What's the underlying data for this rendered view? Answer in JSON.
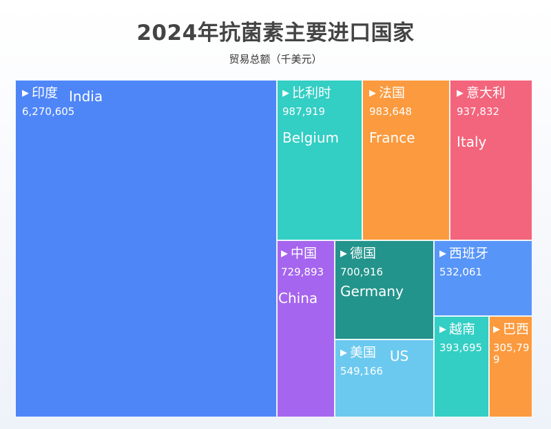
{
  "title": "2024年抗菌素主要进口国家",
  "subtitle": "贸易总额（千美元）",
  "chart_data": {
    "type": "treemap",
    "title": "2024年抗菌素主要进口国家",
    "subtitle": "贸易总额（千美元）",
    "marker": "▶",
    "items": [
      {
        "name": "印度",
        "name_en": "India",
        "value": 6270605,
        "value_label": "6,270,605",
        "color": "#4f86f7"
      },
      {
        "name": "比利时",
        "name_en": "Belgium",
        "value": 987919,
        "value_label": "987,919",
        "color": "#33cec4"
      },
      {
        "name": "法国",
        "name_en": "France",
        "value": 983648,
        "value_label": "983,648",
        "color": "#fb9a3e"
      },
      {
        "name": "意大利",
        "name_en": "Italy",
        "value": 937832,
        "value_label": "937,832",
        "color": "#f2657c"
      },
      {
        "name": "中国",
        "name_en": "China",
        "value": 729893,
        "value_label": "729,893",
        "color": "#a665ee"
      },
      {
        "name": "德国",
        "name_en": "Germany",
        "value": 700916,
        "value_label": "700,916",
        "color": "#23948c"
      },
      {
        "name": "西班牙",
        "name_en": "",
        "value": 532061,
        "value_label": "532,061",
        "color": "#5895f8"
      },
      {
        "name": "美国",
        "name_en": "US",
        "value": 549166,
        "value_label": "549,166",
        "color": "#6bc9ef"
      },
      {
        "name": "越南",
        "name_en": "",
        "value": 393695,
        "value_label": "393,695",
        "color": "#33cec4"
      },
      {
        "name": "巴西",
        "name_en": "",
        "value": 305799,
        "value_label": "305,79\n9",
        "color": "#fb9a3e"
      }
    ]
  }
}
